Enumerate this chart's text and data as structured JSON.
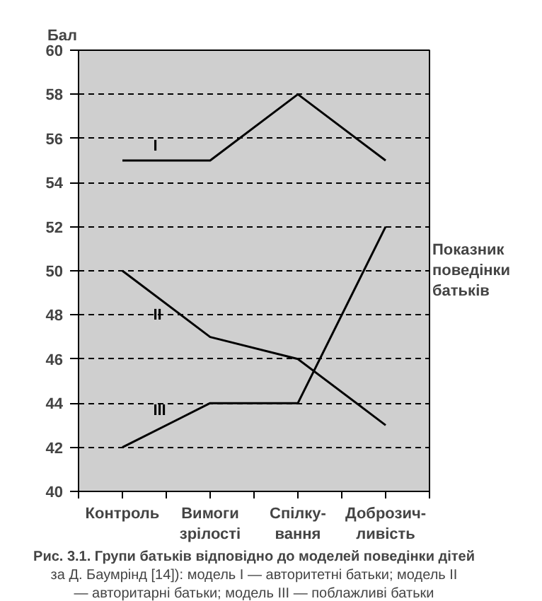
{
  "chart_data": {
    "type": "line",
    "title": "Рис. 3.1. Групи батьків відповідно до моделей поведінки дітей",
    "subtitle": "за Д. Баумрінд [14]): модель I — авторитетні батьки; модель II — авторитарні батьки; модель III — поблажливі батьки",
    "ylabel": "Бал",
    "xlabel": "Показник\nповедінки\nбатьків",
    "categories": [
      "Контроль",
      "Вимоги\nзрілості",
      "Спілку-\nвання",
      "Доброзич-\nливість"
    ],
    "series": [
      {
        "name": "I",
        "color": "#000000",
        "values": [
          55,
          55,
          58,
          55
        ]
      },
      {
        "name": "II",
        "color": "#000000",
        "values": [
          50,
          47,
          46,
          43
        ]
      },
      {
        "name": "III",
        "color": "#000000",
        "values": [
          42,
          44,
          44,
          52
        ]
      }
    ],
    "ylim": [
      40,
      60
    ],
    "yticks": [
      40,
      42,
      44,
      46,
      48,
      50,
      52,
      54,
      56,
      58,
      60
    ],
    "grid": "y",
    "marker": "none",
    "line_style": "solid"
  }
}
